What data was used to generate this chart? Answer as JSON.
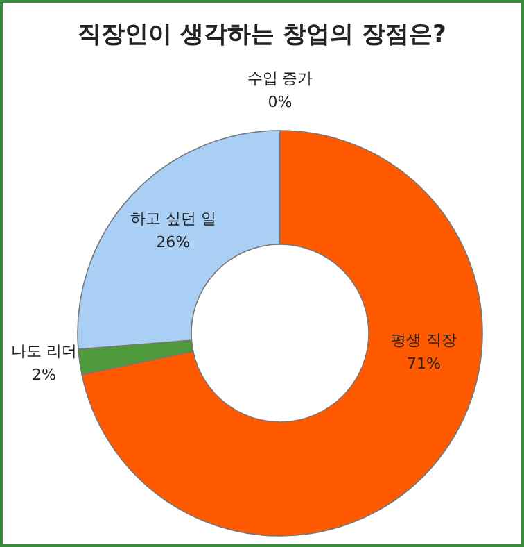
{
  "chart_data": {
    "type": "donut",
    "title": "직장인이 생각하는 창업의 장점은?",
    "categories": [
      "평생 직장",
      "나도 리더",
      "하고 싶던 일",
      "수입 증가"
    ],
    "values": [
      71,
      2,
      26,
      0
    ],
    "colors": [
      "#ff5a00",
      "#4e9a3a",
      "#a9cff5",
      "#bfbfbf"
    ],
    "value_labels": [
      "71%",
      "2%",
      "26%",
      "0%"
    ]
  }
}
